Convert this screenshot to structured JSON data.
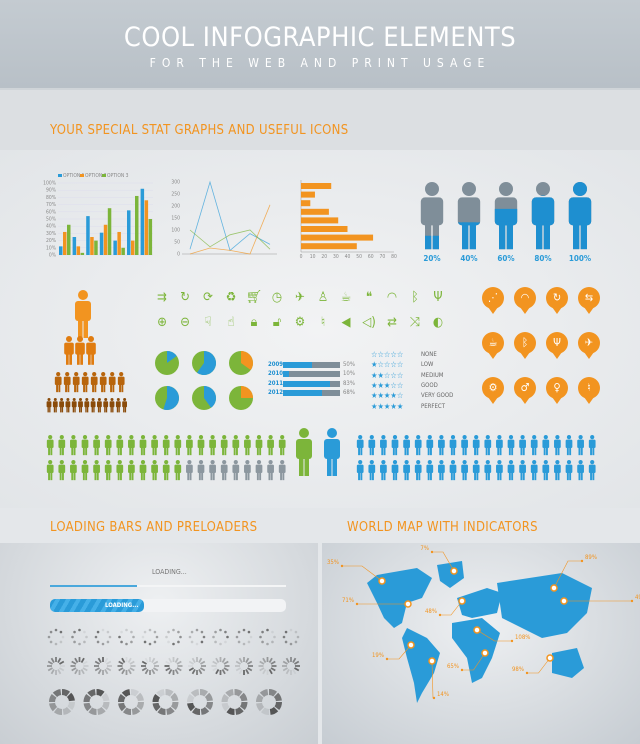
{
  "header": {
    "title": "COOL INFOGRAPHIC ELEMENTS",
    "subtitle": "FOR THE WEB AND PRINT USAGE"
  },
  "sections": {
    "stats": "YOUR SPECIAL STAT GRAPHS AND USEFUL ICONS",
    "loading": "LOADING BARS AND PRELOADERS",
    "map": "WORLD MAP WITH INDICATORS"
  },
  "colors": {
    "orange": "#f29420",
    "blue": "#2a9bd8",
    "green": "#7cb53a",
    "gray": "#7f8e99"
  },
  "chart_data": [
    {
      "type": "bar",
      "legend": [
        "OPTION 1",
        "OPTION 2",
        "OPTION 3"
      ],
      "yticks": [
        "0%",
        "10%",
        "20%",
        "30%",
        "40%",
        "50%",
        "60%",
        "70%",
        "80%",
        "90%",
        "100%"
      ],
      "ylim": [
        0,
        100
      ],
      "series": [
        {
          "name": "OPTION 1",
          "values": [
            12,
            25,
            54,
            31,
            20,
            62,
            92
          ]
        },
        {
          "name": "OPTION 2",
          "values": [
            32,
            12,
            25,
            42,
            32,
            20,
            76
          ]
        },
        {
          "name": "OPTION 3",
          "values": [
            42,
            3,
            20,
            65,
            10,
            82,
            50
          ]
        }
      ]
    },
    {
      "type": "line",
      "yticks": [
        "0",
        "50",
        "100",
        "150",
        "200",
        "250",
        "300"
      ],
      "ylim": [
        0,
        300
      ],
      "series": [
        {
          "values": [
            20,
            300,
            15,
            85,
            40
          ]
        },
        {
          "values": [
            0,
            25,
            15,
            0,
            205
          ]
        },
        {
          "values": [
            100,
            30,
            80,
            100,
            20
          ]
        }
      ]
    },
    {
      "type": "bar",
      "orientation": "horizontal",
      "xticks": [
        "0",
        "10",
        "20",
        "30",
        "40",
        "50",
        "60",
        "70",
        "80"
      ],
      "xlim": [
        0,
        80
      ],
      "values": [
        26,
        12,
        8,
        24,
        32,
        40,
        62,
        48
      ]
    }
  ],
  "people_percent": [
    "20%",
    "40%",
    "60%",
    "80%",
    "100%"
  ],
  "people_fill": [
    20,
    40,
    60,
    80,
    100
  ],
  "progress": [
    {
      "year": "2009",
      "value": 50,
      "label": "50%"
    },
    {
      "year": "2010",
      "value": 10,
      "label": "10%"
    },
    {
      "year": "2011",
      "value": 83,
      "label": "83%"
    },
    {
      "year": "2012",
      "value": 68,
      "label": "68%"
    }
  ],
  "ratings": [
    {
      "stars": 0,
      "label": "NONE"
    },
    {
      "stars": 1,
      "label": "LOW"
    },
    {
      "stars": 2,
      "label": "MEDIUM"
    },
    {
      "stars": 3,
      "label": "GOOD"
    },
    {
      "stars": 4,
      "label": "VERY GOOD"
    },
    {
      "stars": 5,
      "label": "PERFECT"
    }
  ],
  "pies": [
    [
      15,
      85
    ],
    [
      60,
      40
    ],
    [
      35,
      65
    ],
    [
      55,
      45
    ],
    [
      40,
      60
    ],
    [
      25,
      75
    ]
  ],
  "icons_row1": [
    "arrows-right-icon",
    "refresh-icon",
    "sync-icon",
    "recycle-icon",
    "cart-icon",
    "clock-icon",
    "plane-icon",
    "person-icon",
    "coffee-icon",
    "chat-icon",
    "wifi-icon",
    "bluetooth-icon",
    "usb-icon"
  ],
  "icons_row2": [
    "zoom-in-icon",
    "zoom-out-icon",
    "thumbs-down-icon",
    "thumbs-up-icon",
    "lock-icon",
    "unlock-icon",
    "gears-icon",
    "microphone-icon",
    "speaker-icon",
    "volume-icon",
    "repeat-icon",
    "shuffle-icon",
    "toggle-icon"
  ],
  "pins": [
    "share-icon",
    "wifi-icon",
    "refresh-icon",
    "transfer-icon",
    "coffee-icon",
    "bluetooth-icon",
    "usb-icon",
    "plane-icon",
    "gears-icon",
    "man-icon",
    "woman-icon",
    "microphone-icon"
  ],
  "loading": {
    "label_top": "LOADING...",
    "label_bar": "LOADING...",
    "thin_progress": 37,
    "thick_progress": 40
  },
  "map_labels": [
    "35%",
    "7%",
    "89%",
    "71%",
    "48%",
    "49%",
    "108%",
    "19%",
    "14%",
    "65%",
    "98%"
  ]
}
